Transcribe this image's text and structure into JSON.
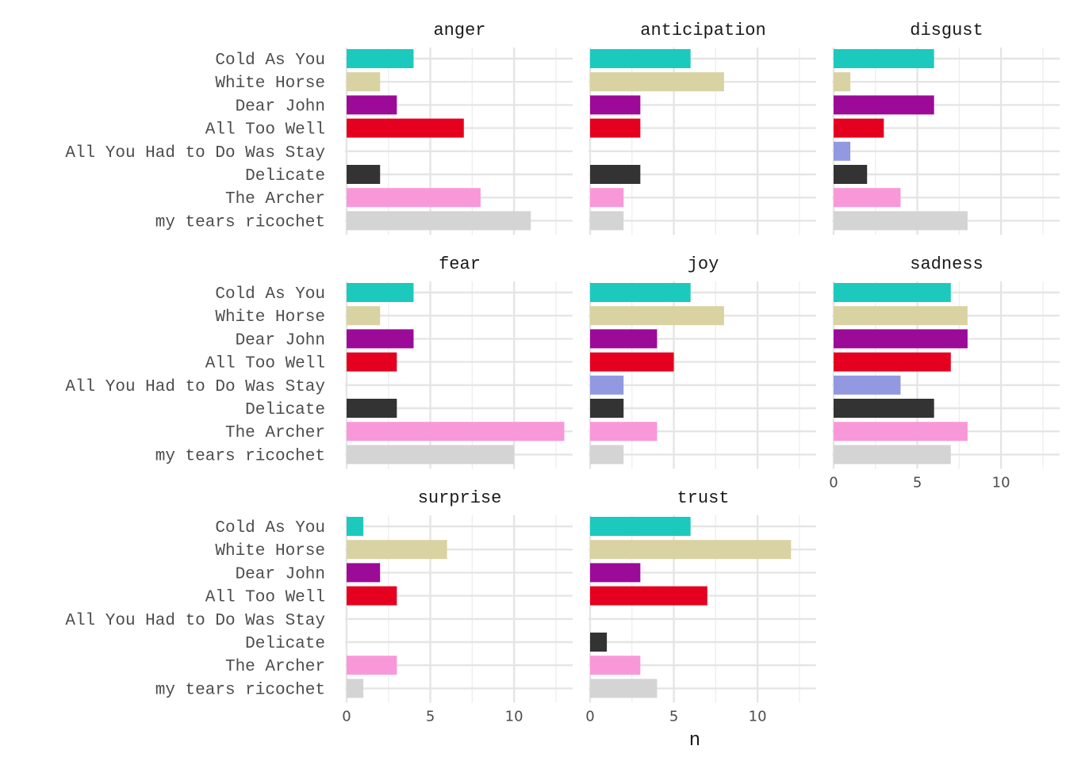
{
  "chart_data": {
    "type": "bar",
    "orientation": "horizontal",
    "xlabel": "n",
    "ylabel": "",
    "xlim": [
      0,
      13.5
    ],
    "x_ticks": [
      0,
      5,
      10
    ],
    "grid": true,
    "legend": "none",
    "categories": [
      "Cold As You",
      "White Horse",
      "Dear John",
      "All Too Well",
      "All You Had to Do Was Stay",
      "Delicate",
      "The Archer",
      "my tears ricochet"
    ],
    "colors": [
      "#1cc9bd",
      "#d9d2a2",
      "#9c0a98",
      "#e4001e",
      "#9299e0",
      "#333333",
      "#f998d8",
      "#d4d4d4"
    ],
    "facets": [
      {
        "title": "anger",
        "values": [
          4,
          2,
          3,
          7,
          0,
          2,
          8,
          11
        ]
      },
      {
        "title": "anticipation",
        "values": [
          6,
          8,
          3,
          3,
          0,
          3,
          2,
          2
        ]
      },
      {
        "title": "disgust",
        "values": [
          6,
          1,
          6,
          3,
          1,
          2,
          4,
          8
        ]
      },
      {
        "title": "fear",
        "values": [
          4,
          2,
          4,
          3,
          0,
          3,
          13,
          10
        ]
      },
      {
        "title": "joy",
        "values": [
          6,
          8,
          4,
          5,
          2,
          2,
          4,
          2
        ]
      },
      {
        "title": "sadness",
        "values": [
          7,
          8,
          8,
          7,
          4,
          6,
          8,
          7
        ]
      },
      {
        "title": "surprise",
        "values": [
          1,
          6,
          2,
          3,
          0,
          0,
          3,
          1
        ]
      },
      {
        "title": "trust",
        "values": [
          6,
          12,
          3,
          7,
          0,
          1,
          3,
          4
        ]
      }
    ]
  }
}
